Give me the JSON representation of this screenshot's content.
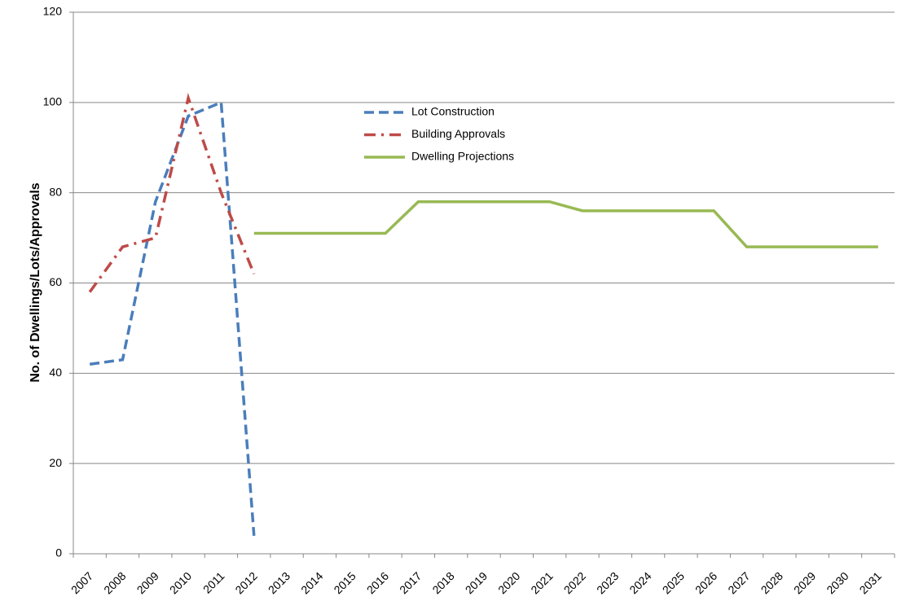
{
  "chart_data": {
    "type": "line",
    "y_label": "No. of Dwellings/Lots/Approvals",
    "categories": [
      "2007",
      "2008",
      "2009",
      "2010",
      "2011",
      "2012",
      "2013",
      "2014",
      "2015",
      "2016",
      "2017",
      "2018",
      "2019",
      "2020",
      "2021",
      "2022",
      "2023",
      "2024",
      "2025",
      "2026",
      "2027",
      "2028",
      "2029",
      "2030",
      "2031"
    ],
    "series": [
      {
        "name": "Lot Construction",
        "color": "#4a7ebb",
        "dash": "dashed",
        "values": [
          42,
          43,
          78,
          97,
          100,
          4,
          null,
          null,
          null,
          null,
          null,
          null,
          null,
          null,
          null,
          null,
          null,
          null,
          null,
          null,
          null,
          null,
          null,
          null,
          null
        ]
      },
      {
        "name": "Building Approvals",
        "color": "#be4b48",
        "dash": "dashdot",
        "values": [
          58,
          68,
          70,
          101,
          80,
          62,
          null,
          null,
          null,
          null,
          null,
          null,
          null,
          null,
          null,
          null,
          null,
          null,
          null,
          null,
          null,
          null,
          null,
          null,
          null
        ]
      },
      {
        "name": "Dwelling Projections",
        "color": "#98b954",
        "dash": "solid",
        "values": [
          null,
          null,
          null,
          null,
          null,
          71,
          71,
          71,
          71,
          71,
          78,
          78,
          78,
          78,
          78,
          76,
          76,
          76,
          76,
          76,
          68,
          68,
          68,
          68,
          68
        ]
      }
    ],
    "ylim": [
      0,
      120
    ],
    "yticks": [
      0,
      20,
      40,
      60,
      80,
      100,
      120
    ],
    "grid": true
  }
}
